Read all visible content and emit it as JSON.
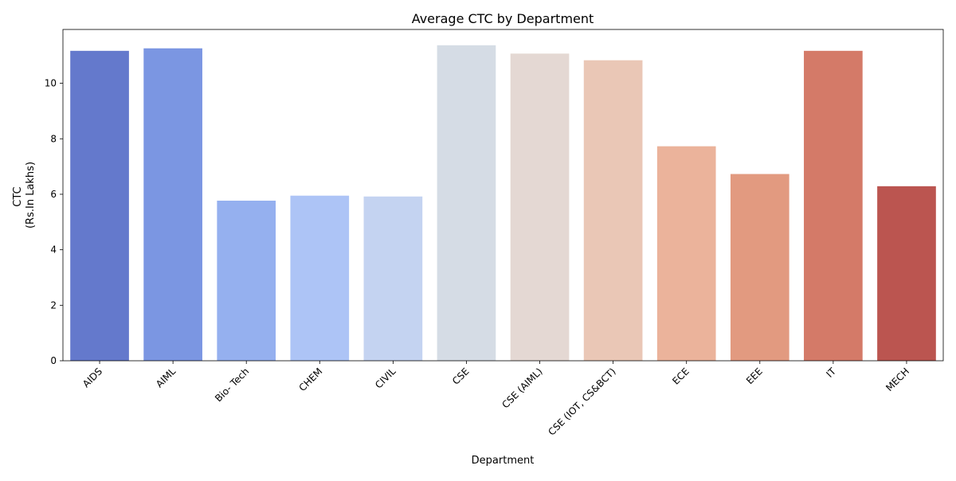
{
  "chart_data": {
    "type": "bar",
    "title": "Average CTC by Department",
    "xlabel": "Department",
    "ylabel_lines": [
      "CTC",
      "(Rs.In Lakhs)"
    ],
    "categories": [
      "AIDS",
      "AIML",
      "Bio- Tech",
      "CHEM",
      "CIVIL",
      "CSE",
      "CSE (AIML)",
      "CSE (IOT, CS&BCT)",
      "ECE",
      "EEE",
      "IT",
      "MECH"
    ],
    "values": [
      11.17,
      11.26,
      5.77,
      5.95,
      5.92,
      11.37,
      11.07,
      10.83,
      7.73,
      6.73,
      11.17,
      6.29
    ],
    "colors": [
      "#6479cc",
      "#7b96e2",
      "#95b0ef",
      "#adc4f6",
      "#c4d3f1",
      "#d5dce5",
      "#e4d8d3",
      "#eac7b6",
      "#ebb39b",
      "#e29a80",
      "#d47a68",
      "#bb5550"
    ],
    "ylim": [
      0,
      11.94
    ],
    "yticks": [
      0,
      2,
      4,
      6,
      8,
      10
    ],
    "grid": false,
    "legend": "none",
    "xtick_rotation": 45
  }
}
